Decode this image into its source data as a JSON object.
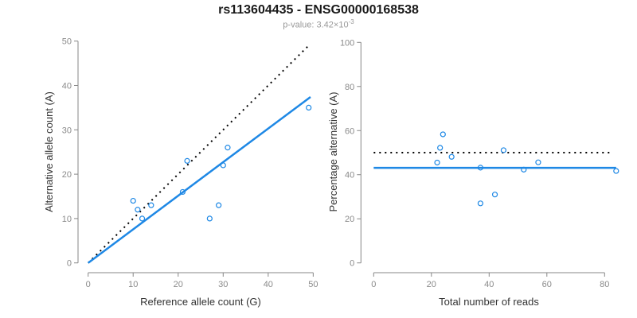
{
  "header": {
    "title": "rs113604435 - ENSG00000168538",
    "pvalue_text": "p-value: 3.42×10",
    "pvalue_exponent": "-3"
  },
  "colors": {
    "accent_blue": "#1E88E5",
    "dotted_black": "#000000",
    "axis_gray": "#878787",
    "tick_label_gray": "#8a8a8a"
  },
  "chart_data": [
    {
      "type": "scatter",
      "name": "allele-counts",
      "xlabel": "Reference allele count (G)",
      "ylabel": "Alternative allele count (A)",
      "xlim": [
        0,
        50
      ],
      "ylim": [
        0,
        50
      ],
      "xticks": [
        0,
        10,
        20,
        30,
        40,
        50
      ],
      "yticks": [
        0,
        10,
        20,
        30,
        40,
        50
      ],
      "grid": false,
      "point_color": "#1E88E5",
      "points": [
        [
          10,
          14
        ],
        [
          11,
          12
        ],
        [
          12,
          10
        ],
        [
          14,
          13
        ],
        [
          21,
          16
        ],
        [
          22,
          23
        ],
        [
          27,
          10
        ],
        [
          29,
          13
        ],
        [
          30,
          22
        ],
        [
          31,
          26
        ],
        [
          49,
          35
        ]
      ],
      "lines": [
        {
          "name": "identity-line",
          "style": "dotted",
          "color": "#000000",
          "x1": 0,
          "y1": 0,
          "x2": 49,
          "y2": 49
        },
        {
          "name": "fit-line",
          "style": "solid",
          "color": "#1E88E5",
          "x1": 0,
          "y1": 0,
          "x2": 49.4,
          "y2": 37.4
        }
      ]
    },
    {
      "type": "scatter",
      "name": "percentage-alternative",
      "xlabel": "Total number of reads",
      "ylabel": "Percentage alternative (A)",
      "xlim": [
        0,
        85
      ],
      "ylim": [
        0,
        100
      ],
      "xticks": [
        0,
        20,
        40,
        60,
        80
      ],
      "yticks": [
        0,
        20,
        40,
        60,
        80,
        100
      ],
      "grid": false,
      "point_color": "#1E88E5",
      "points": [
        [
          24,
          58.3
        ],
        [
          23,
          52.2
        ],
        [
          22,
          45.5
        ],
        [
          27,
          48.1
        ],
        [
          37,
          43.2
        ],
        [
          45,
          51.1
        ],
        [
          37,
          27.0
        ],
        [
          42,
          31.0
        ],
        [
          52,
          42.3
        ],
        [
          57,
          45.6
        ],
        [
          84,
          41.7
        ]
      ],
      "lines": [
        {
          "name": "expected-50pct-line",
          "style": "dotted",
          "color": "#000000",
          "x1": 0,
          "y1": 50,
          "x2": 82.5,
          "y2": 50
        },
        {
          "name": "mean-percentage-line",
          "style": "solid",
          "color": "#1E88E5",
          "x1": 0,
          "y1": 43.1,
          "x2": 84,
          "y2": 43.1
        }
      ]
    }
  ]
}
